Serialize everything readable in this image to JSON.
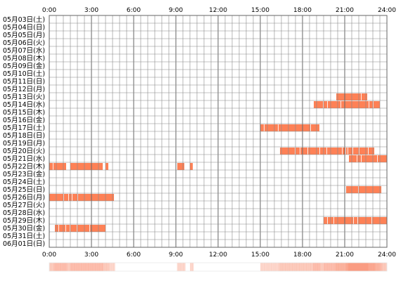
{
  "chart_data": {
    "type": "heatmap",
    "title": "",
    "xlabel": "",
    "ylabel": "",
    "x_ticks": [
      "0:00",
      "3:00",
      "6:00",
      "9:00",
      "12:00",
      "15:00",
      "18:00",
      "21:00",
      "24:00"
    ],
    "x_range_hours": [
      0,
      24
    ],
    "slot_minutes": 30,
    "grid": true,
    "colors": {
      "bar": "#fe8156",
      "bar_stripe": "#ffffff",
      "grid": "#888888",
      "border": "#666666",
      "density_base": "#fde6dd",
      "density_high": "#fa9c82"
    },
    "rows": [
      {
        "label": "05月03日(土)",
        "spans": []
      },
      {
        "label": "05月04日(日)",
        "spans": []
      },
      {
        "label": "05月05日(月)",
        "spans": []
      },
      {
        "label": "05月06日(火)",
        "spans": []
      },
      {
        "label": "05月07日(水)",
        "spans": []
      },
      {
        "label": "05月08日(木)",
        "spans": []
      },
      {
        "label": "05月09日(金)",
        "spans": []
      },
      {
        "label": "05月10日(土)",
        "spans": []
      },
      {
        "label": "05月11日(日)",
        "spans": []
      },
      {
        "label": "05月12日(月)",
        "spans": []
      },
      {
        "label": "05月13日(火)",
        "spans": [
          [
            20.4,
            22.6
          ]
        ]
      },
      {
        "label": "05月14日(水)",
        "spans": [
          [
            18.8,
            23.5
          ]
        ]
      },
      {
        "label": "05月15日(木)",
        "spans": []
      },
      {
        "label": "05月16日(金)",
        "spans": []
      },
      {
        "label": "05月17日(土)",
        "spans": [
          [
            15.0,
            19.2
          ]
        ]
      },
      {
        "label": "05月18日(日)",
        "spans": []
      },
      {
        "label": "05月19日(月)",
        "spans": []
      },
      {
        "label": "05月20日(火)",
        "spans": [
          [
            16.4,
            23.1
          ]
        ]
      },
      {
        "label": "05月21日(水)",
        "spans": [
          [
            21.3,
            24.0
          ]
        ]
      },
      {
        "label": "05月22日(木)",
        "spans": [
          [
            0.0,
            1.2
          ],
          [
            1.5,
            3.8
          ],
          [
            4.0,
            4.2
          ],
          [
            9.1,
            9.6
          ],
          [
            10.0,
            10.2
          ]
        ]
      },
      {
        "label": "05月23日(金)",
        "spans": []
      },
      {
        "label": "05月24日(土)",
        "spans": []
      },
      {
        "label": "05月25日(日)",
        "spans": [
          [
            21.1,
            23.6
          ]
        ]
      },
      {
        "label": "05月26日(月)",
        "spans": [
          [
            0.0,
            4.6
          ]
        ]
      },
      {
        "label": "05月27日(火)",
        "spans": []
      },
      {
        "label": "05月28日(水)",
        "spans": []
      },
      {
        "label": "05月29日(木)",
        "spans": [
          [
            19.5,
            24.0
          ]
        ]
      },
      {
        "label": "05月30日(金)",
        "spans": [
          [
            0.4,
            4.0
          ]
        ]
      },
      {
        "label": "05月31日(土)",
        "spans": []
      },
      {
        "label": "06月01日(日)",
        "spans": []
      }
    ]
  }
}
